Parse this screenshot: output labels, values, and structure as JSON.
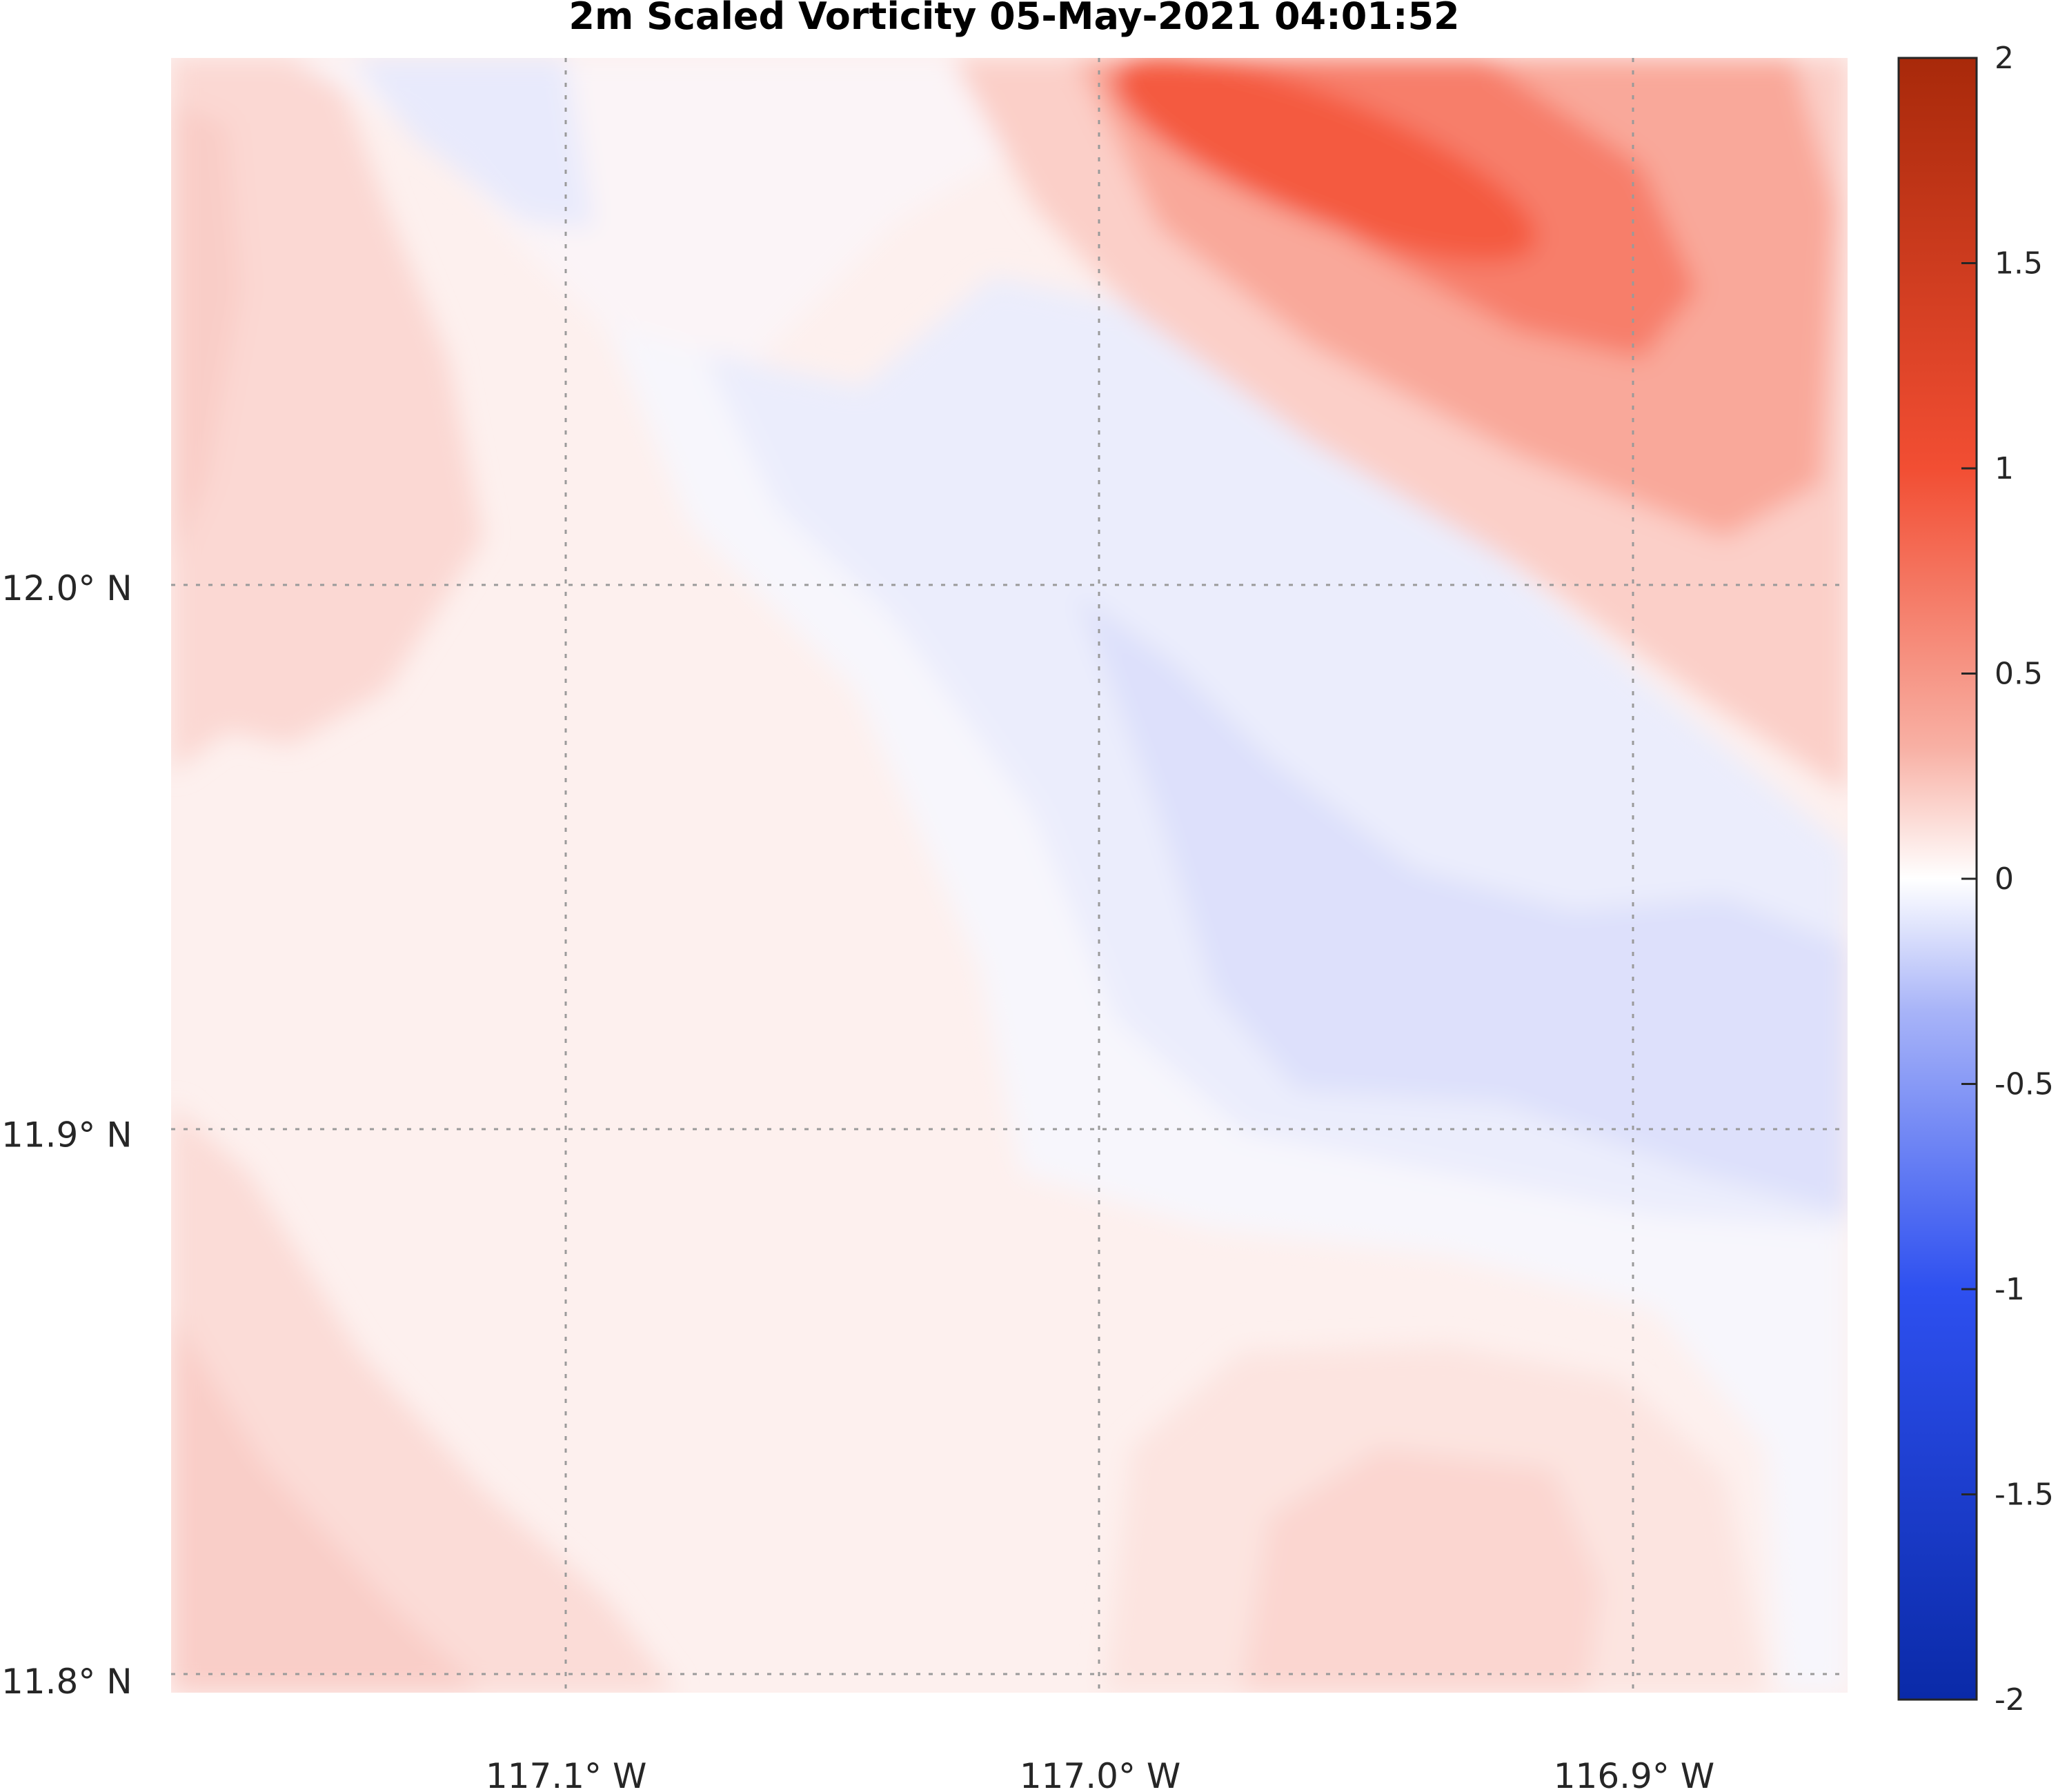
{
  "chart_data": {
    "type": "heatmap",
    "title": "2m Scaled Vorticity  05-May-2021 04:01:52",
    "xlabel": "",
    "ylabel": "",
    "x_range": [
      -117.174,
      -116.86
    ],
    "y_range": [
      11.798,
      12.097
    ],
    "x_ticks": [
      {
        "value": -117.1,
        "label": "117.1° W"
      },
      {
        "value": -117.0,
        "label": "117.0° W"
      },
      {
        "value": -116.9,
        "label": "116.9° W"
      }
    ],
    "y_ticks": [
      {
        "value": 12.0,
        "label": "12.0° N"
      },
      {
        "value": 11.9,
        "label": "11.9° N"
      },
      {
        "value": 11.8,
        "label": "11.8° N"
      }
    ],
    "grid": true,
    "colorbar": {
      "range": [
        -2,
        2
      ],
      "ticks": [
        2,
        1.5,
        1,
        0.5,
        0,
        -0.5,
        -1,
        -1.5,
        -2
      ],
      "tick_labels": [
        "2",
        "1.5",
        "1",
        "0.5",
        "0",
        "-0.5",
        "-1",
        "-1.5",
        "-2"
      ],
      "colormap": "blue-white-red"
    },
    "features": [
      {
        "name": "positive vorticity maximum",
        "lon": -116.945,
        "lat": 12.072,
        "value": 1.0
      },
      {
        "name": "positive band northeast",
        "lon": -116.875,
        "lat": 12.05,
        "value": 0.5
      },
      {
        "name": "weak negative band",
        "lon": -116.98,
        "lat": 11.96,
        "value": -0.2
      },
      {
        "name": "weak positive southwest",
        "lon": -117.16,
        "lat": 11.82,
        "value": 0.2
      },
      {
        "name": "weak positive south",
        "lon": -116.93,
        "lat": 11.81,
        "value": 0.15
      }
    ]
  },
  "colors": {
    "max_red": "#a8290a",
    "min_blue": "#0a2aa8",
    "grid": "#9a9a9a",
    "axis_text": "#262626"
  }
}
